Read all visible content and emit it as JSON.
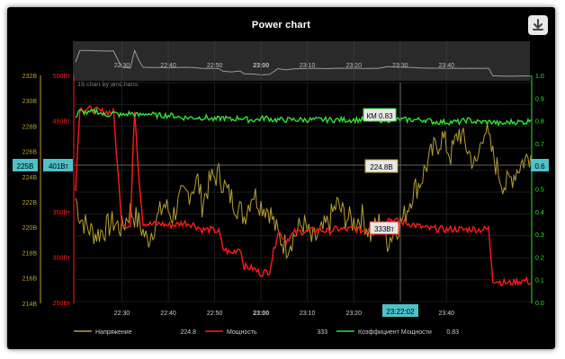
{
  "title": "Power chart",
  "credit": "JS chart by amCharts",
  "colors": {
    "voltage": "#b8a032",
    "power": "#ff1a1a",
    "pf": "#33e233",
    "cursor_label_bg": "#4fc1c9",
    "background": "#000000"
  },
  "icons": {
    "download": "download-icon"
  },
  "cursor": {
    "time": "23:22:02",
    "left_label_voltage": "225В",
    "left_label_power": "401Вт",
    "right_label_pf": "0.6",
    "tooltip_voltage": "224.8В",
    "tooltip_power": "333Вт",
    "tooltip_pf": "КМ 0.83"
  },
  "legend": {
    "voltage_name": "Напряжение",
    "voltage_value": "224.8",
    "power_name": "Мощность",
    "power_value": "333",
    "pf_name": "Коэффициент Мощности",
    "pf_value": "0.83"
  },
  "chart_data": {
    "type": "line",
    "x_ticks": [
      "22:30",
      "22:40",
      "22:50",
      "23:00",
      "23:10",
      "23:20",
      "23:30",
      "23:40"
    ],
    "x_bold_tick": "23:00",
    "xlim": [
      "22:19",
      "23:47"
    ],
    "y_axes": {
      "voltage": {
        "ticks": [
          "232В",
          "230В",
          "228В",
          "226В",
          "224В",
          "222В",
          "220В",
          "218В",
          "216В",
          "214В"
        ],
        "range": [
          214,
          232
        ]
      },
      "power": {
        "ticks": [
          "500Вт",
          "450Вт",
          "400Вт",
          "350Вт",
          "300Вт",
          "250Вт"
        ],
        "range": [
          250,
          500
        ]
      },
      "pf": {
        "ticks": [
          "1.0",
          "0.9",
          "0.8",
          "0.7",
          "0.6",
          "0.5",
          "0.4",
          "0.3",
          "0.2",
          "0.1",
          "0.0"
        ],
        "range": [
          0,
          1
        ]
      }
    },
    "series": [
      {
        "name": "Напряжение",
        "axis": "voltage",
        "points": [
          [
            0,
            222.5
          ],
          [
            1,
            221
          ],
          [
            3,
            220
          ],
          [
            5,
            219.5
          ],
          [
            7,
            220
          ],
          [
            9,
            220.5
          ],
          [
            11,
            220
          ],
          [
            13,
            221.5
          ],
          [
            15,
            220.5
          ],
          [
            17,
            219
          ],
          [
            19,
            220.5
          ],
          [
            21,
            222
          ],
          [
            23,
            221
          ],
          [
            25,
            222.5
          ],
          [
            27,
            223
          ],
          [
            29,
            224
          ],
          [
            30,
            222
          ],
          [
            32,
            224
          ],
          [
            34,
            224.5
          ],
          [
            36,
            223
          ],
          [
            38,
            222
          ],
          [
            40,
            221
          ],
          [
            42,
            223
          ],
          [
            44,
            222
          ],
          [
            46,
            221.5
          ],
          [
            48,
            219.5
          ],
          [
            50,
            218.5
          ],
          [
            52,
            219.5
          ],
          [
            54,
            220.5
          ],
          [
            56,
            219
          ],
          [
            58,
            219.5
          ],
          [
            60,
            220.5
          ],
          [
            62,
            222
          ],
          [
            64,
            221
          ],
          [
            66,
            220.5
          ],
          [
            68,
            221
          ],
          [
            70,
            219.5
          ],
          [
            72,
            220.5
          ],
          [
            74,
            219
          ],
          [
            76,
            220
          ],
          [
            78,
            221
          ],
          [
            80,
            223
          ],
          [
            82,
            224
          ],
          [
            83,
            225
          ],
          [
            85,
            226.5
          ],
          [
            87,
            227.5
          ],
          [
            89,
            226
          ],
          [
            91,
            228
          ],
          [
            93,
            226.5
          ],
          [
            95,
            225
          ],
          [
            97,
            228.5
          ],
          [
            99,
            226
          ],
          [
            101,
            224
          ],
          [
            102,
            223.5
          ],
          [
            104,
            224.5
          ],
          [
            106,
            225.5
          ],
          [
            108,
            226
          ]
        ]
      },
      {
        "name": "Мощность",
        "axis": "power",
        "points": [
          [
            0,
            380
          ],
          [
            1,
            470
          ],
          [
            3,
            470
          ],
          [
            5,
            468
          ],
          [
            7,
            466
          ],
          [
            9,
            467
          ],
          [
            10,
            400
          ],
          [
            11,
            340
          ],
          [
            13,
            335
          ],
          [
            14,
            470
          ],
          [
            15,
            395
          ],
          [
            16,
            340
          ],
          [
            18,
            338
          ],
          [
            20,
            339
          ],
          [
            22,
            337
          ],
          [
            24,
            338
          ],
          [
            26,
            340
          ],
          [
            28,
            338
          ],
          [
            30,
            332
          ],
          [
            32,
            332
          ],
          [
            34,
            330
          ],
          [
            35,
            310
          ],
          [
            37,
            305
          ],
          [
            39,
            312
          ],
          [
            40,
            290
          ],
          [
            42,
            288
          ],
          [
            44,
            282
          ],
          [
            46,
            285
          ],
          [
            48,
            330
          ],
          [
            50,
            320
          ],
          [
            52,
            329
          ],
          [
            54,
            330
          ],
          [
            56,
            331
          ],
          [
            58,
            332
          ],
          [
            60,
            330
          ],
          [
            62,
            333
          ],
          [
            64,
            332
          ],
          [
            66,
            333
          ],
          [
            68,
            331
          ],
          [
            70,
            332
          ],
          [
            72,
            333
          ],
          [
            74,
            345
          ],
          [
            76,
            342
          ],
          [
            78,
            340
          ],
          [
            80,
            338
          ],
          [
            82,
            335
          ],
          [
            84,
            333
          ],
          [
            86,
            333
          ],
          [
            88,
            332
          ],
          [
            90,
            333
          ],
          [
            92,
            332
          ],
          [
            94,
            333
          ],
          [
            96,
            332
          ],
          [
            98,
            333
          ],
          [
            99,
            275
          ],
          [
            101,
            272
          ],
          [
            103,
            271
          ],
          [
            105,
            273
          ],
          [
            107,
            274
          ],
          [
            108,
            271
          ]
        ]
      },
      {
        "name": "Коэффициент Мощности",
        "axis": "pf",
        "points": [
          [
            0,
            0.84
          ],
          [
            1,
            0.87
          ],
          [
            3,
            0.86
          ],
          [
            5,
            0.87
          ],
          [
            7,
            0.85
          ],
          [
            9,
            0.86
          ],
          [
            11,
            0.85
          ],
          [
            13,
            0.86
          ],
          [
            15,
            0.85
          ],
          [
            17,
            0.86
          ],
          [
            19,
            0.85
          ],
          [
            21,
            0.85
          ],
          [
            23,
            0.85
          ],
          [
            25,
            0.84
          ],
          [
            27,
            0.84
          ],
          [
            29,
            0.84
          ],
          [
            31,
            0.84
          ],
          [
            33,
            0.83
          ],
          [
            35,
            0.84
          ],
          [
            37,
            0.83
          ],
          [
            39,
            0.84
          ],
          [
            41,
            0.83
          ],
          [
            43,
            0.83
          ],
          [
            45,
            0.84
          ],
          [
            47,
            0.83
          ],
          [
            49,
            0.83
          ],
          [
            51,
            0.83
          ],
          [
            53,
            0.83
          ],
          [
            55,
            0.83
          ],
          [
            57,
            0.83
          ],
          [
            59,
            0.83
          ],
          [
            61,
            0.83
          ],
          [
            63,
            0.83
          ],
          [
            65,
            0.83
          ],
          [
            67,
            0.83
          ],
          [
            69,
            0.83
          ],
          [
            71,
            0.83
          ],
          [
            73,
            0.83
          ],
          [
            75,
            0.83
          ],
          [
            77,
            0.83
          ],
          [
            79,
            0.83
          ],
          [
            81,
            0.83
          ],
          [
            83,
            0.83
          ],
          [
            85,
            0.82
          ],
          [
            87,
            0.82
          ],
          [
            89,
            0.82
          ],
          [
            91,
            0.82
          ],
          [
            93,
            0.83
          ],
          [
            95,
            0.82
          ],
          [
            97,
            0.82
          ],
          [
            99,
            0.82
          ],
          [
            101,
            0.81
          ],
          [
            103,
            0.82
          ],
          [
            105,
            0.82
          ],
          [
            107,
            0.82
          ],
          [
            108,
            0.83
          ]
        ]
      }
    ],
    "grid": true,
    "legend_position": "bottom"
  }
}
